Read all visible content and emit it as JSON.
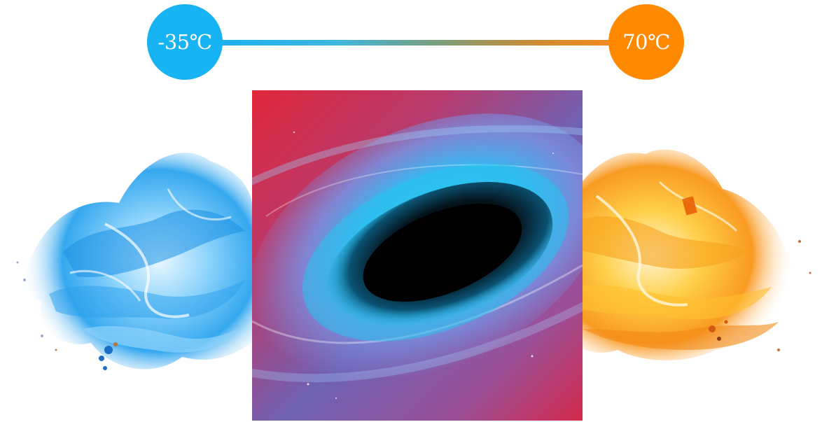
{
  "temperature_range": {
    "min_label": "-35℃",
    "max_label": "70℃",
    "min_color": "#17b3f3",
    "max_color": "#ff8a00"
  },
  "illustrations": {
    "left": "ice-flame",
    "center": "black-hole",
    "right": "fire-flame"
  }
}
